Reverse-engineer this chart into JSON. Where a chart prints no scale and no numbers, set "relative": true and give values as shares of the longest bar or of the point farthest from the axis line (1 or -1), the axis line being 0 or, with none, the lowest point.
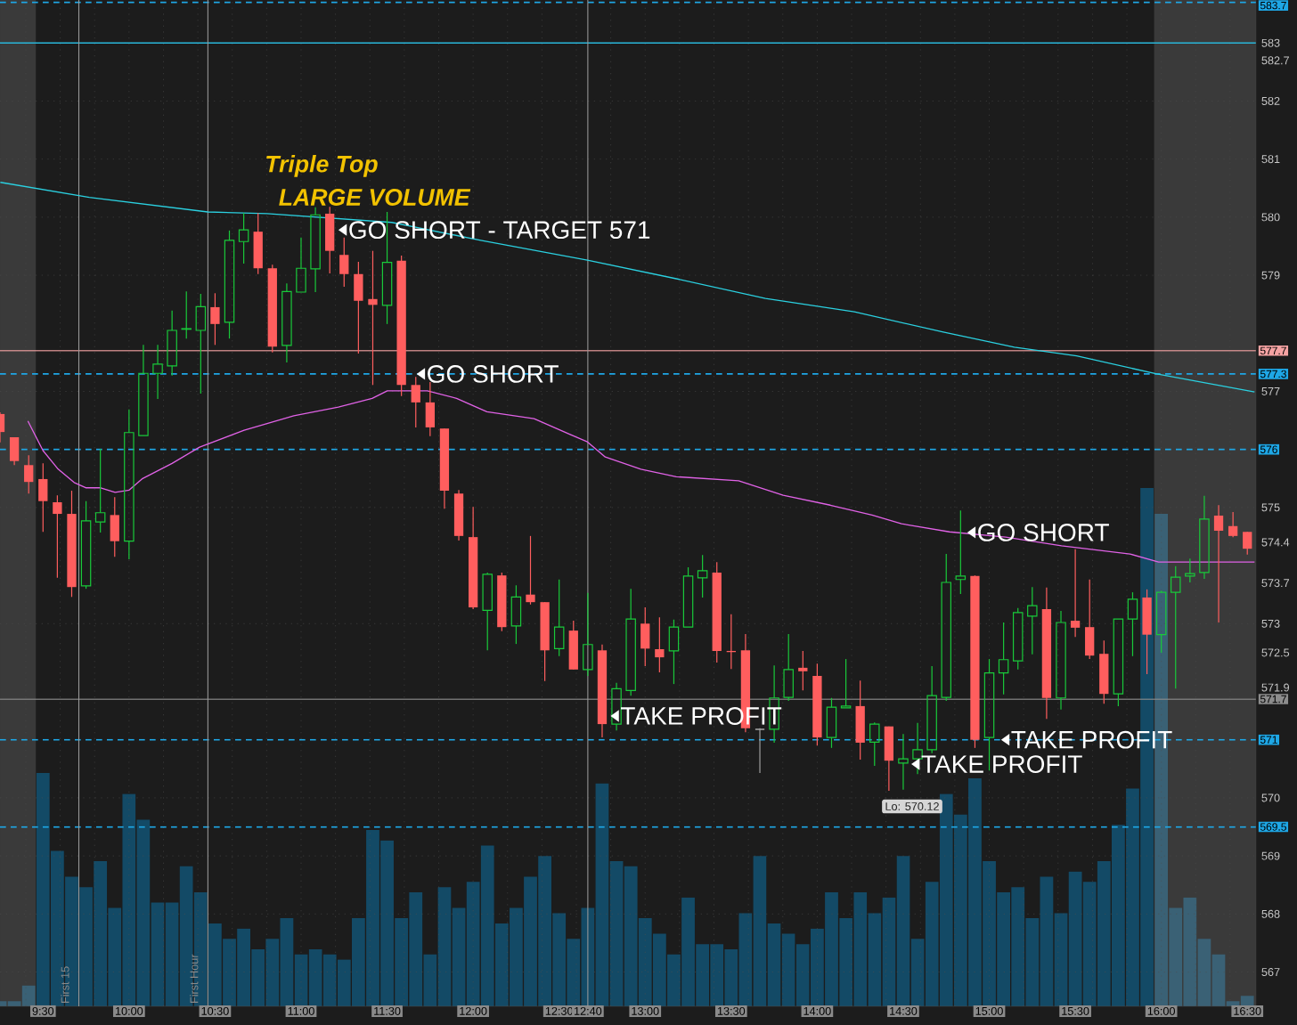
{
  "chart_data": [
    {
      "type": "candlestick",
      "x": [
        9.25,
        9.3333,
        9.4167,
        9.5,
        9.5833,
        9.6667,
        9.75,
        9.8333,
        9.9167,
        10,
        10.0833,
        10.1667,
        10.25,
        10.3333,
        10.4167,
        10.5,
        10.5833,
        10.6667,
        10.75,
        10.8333,
        10.9167,
        11,
        11.0833,
        11.1667,
        11.25,
        11.3333,
        11.4167,
        11.5,
        11.5833,
        11.6667,
        11.75,
        11.8333,
        11.9167,
        12,
        12.0833,
        12.1667,
        12.25,
        12.3333,
        12.4167,
        12.5,
        12.5833,
        12.6667,
        12.75,
        12.8333,
        12.9167,
        13,
        13.0833,
        13.1667,
        13.25,
        13.3333,
        13.4167,
        13.5,
        13.5833,
        13.6667,
        13.75,
        13.8333,
        13.9167,
        14,
        14.0833,
        14.1667,
        14.25,
        14.3333,
        14.4167,
        14.5,
        14.5833,
        14.6667,
        14.75,
        14.8333,
        14.9167,
        15,
        15.0833,
        15.1667,
        15.25,
        15.3333,
        15.4167,
        15.5,
        15.5833,
        15.6667,
        15.75,
        15.8333,
        15.9167,
        16,
        16.0833,
        16.1667,
        16.25,
        16.3333,
        16.4167,
        16.5
      ],
      "ohlc": [
        [
          576.61,
          576.64,
          576.12,
          576.3
        ],
        [
          576.21,
          576.21,
          575.73,
          575.8
        ],
        [
          575.73,
          575.9,
          575.24,
          575.44
        ],
        [
          575.49,
          575.76,
          574.58,
          575.11
        ],
        [
          575.09,
          575.21,
          573.79,
          574.89
        ],
        [
          574.89,
          575.29,
          573.46,
          573.63
        ],
        [
          573.65,
          575.11,
          573.6,
          574.77
        ],
        [
          574.75,
          576.01,
          574.57,
          574.91
        ],
        [
          574.87,
          575.18,
          574.15,
          574.42
        ],
        [
          574.42,
          576.69,
          574.11,
          576.29
        ],
        [
          576.24,
          577.8,
          576.21,
          577.31
        ],
        [
          577.31,
          577.8,
          576.87,
          577.47
        ],
        [
          577.44,
          578.39,
          577.27,
          578.05
        ],
        [
          578.07,
          578.72,
          577.91,
          578.08
        ],
        [
          578.05,
          578.68,
          576.96,
          578.46
        ],
        [
          578.45,
          578.69,
          577.8,
          578.16
        ],
        [
          578.19,
          579.77,
          577.91,
          579.6
        ],
        [
          579.58,
          580.07,
          579.2,
          579.78
        ],
        [
          579.75,
          580.07,
          579.02,
          579.12
        ],
        [
          579.12,
          579.18,
          577.67,
          577.77
        ],
        [
          577.79,
          578.86,
          577.5,
          578.72
        ],
        [
          578.71,
          579.65,
          578.71,
          579.12
        ],
        [
          579.11,
          580.17,
          578.71,
          580.04
        ],
        [
          580.06,
          580.18,
          579.03,
          579.42
        ],
        [
          579.35,
          579.65,
          578.8,
          579.02
        ],
        [
          579.02,
          579.23,
          577.65,
          578.56
        ],
        [
          578.59,
          579.42,
          577.11,
          578.49
        ],
        [
          578.48,
          580.09,
          578.16,
          579.22
        ],
        [
          579.25,
          579.34,
          576.92,
          577.11
        ],
        [
          577.11,
          577.25,
          576.38,
          576.81
        ],
        [
          576.81,
          577.16,
          576.23,
          576.38
        ],
        [
          576.36,
          576.36,
          574.98,
          575.29
        ],
        [
          575.24,
          575.3,
          574.43,
          574.51
        ],
        [
          574.49,
          575.01,
          573.25,
          573.28
        ],
        [
          573.23,
          573.88,
          572.54,
          573.85
        ],
        [
          573.83,
          573.88,
          572.87,
          572.94
        ],
        [
          572.96,
          573.66,
          572.65,
          573.46
        ],
        [
          573.5,
          574.51,
          573.33,
          573.37
        ],
        [
          573.37,
          573.37,
          572.01,
          572.54
        ],
        [
          572.57,
          573.76,
          572.44,
          572.94
        ],
        [
          572.88,
          573.05,
          572.21,
          572.21
        ],
        [
          572.21,
          573.53,
          572.1,
          572.64
        ],
        [
          572.54,
          572.64,
          571.04,
          571.27
        ],
        [
          571.27,
          571.98,
          571.16,
          571.88
        ],
        [
          571.85,
          573.6,
          571.76,
          573.08
        ],
        [
          573.0,
          573.28,
          572.27,
          572.57
        ],
        [
          572.56,
          573.11,
          572.16,
          572.42
        ],
        [
          572.53,
          573.07,
          571.96,
          572.94
        ],
        [
          572.94,
          573.97,
          572.94,
          573.82
        ],
        [
          573.79,
          574.18,
          573.45,
          573.91
        ],
        [
          573.88,
          574.06,
          572.33,
          572.53
        ],
        [
          572.53,
          573.16,
          572.22,
          572.51
        ],
        [
          572.54,
          572.82,
          571.13,
          571.2
        ],
        [
          571.18,
          571.2,
          570.43,
          571.18
        ],
        [
          571.18,
          572.28,
          570.95,
          571.72
        ],
        [
          571.73,
          572.82,
          571.67,
          572.21
        ],
        [
          572.24,
          572.53,
          571.85,
          572.18
        ],
        [
          572.1,
          572.31,
          570.9,
          571.04
        ],
        [
          571.04,
          571.72,
          570.86,
          571.56
        ],
        [
          571.55,
          572.39,
          571.52,
          571.58
        ],
        [
          571.58,
          572.02,
          570.66,
          570.95
        ],
        [
          570.96,
          571.3,
          570.55,
          571.27
        ],
        [
          571.23,
          571.23,
          570.12,
          570.64
        ],
        [
          570.6,
          571.1,
          570.14,
          570.67
        ],
        [
          570.67,
          571.29,
          570.41,
          570.83
        ],
        [
          570.83,
          572.27,
          570.77,
          571.76
        ],
        [
          571.73,
          574.2,
          571.67,
          573.71
        ],
        [
          573.76,
          574.95,
          573.51,
          573.82
        ],
        [
          573.82,
          573.83,
          570.86,
          571.0
        ],
        [
          571.04,
          572.39,
          570.47,
          572.15
        ],
        [
          572.15,
          573.02,
          571.78,
          572.38
        ],
        [
          572.36,
          573.27,
          572.21,
          573.19
        ],
        [
          573.13,
          573.63,
          572.47,
          573.31
        ],
        [
          573.25,
          573.62,
          571.36,
          571.72
        ],
        [
          571.72,
          573.22,
          571.52,
          573.02
        ],
        [
          573.05,
          574.28,
          572.77,
          572.93
        ],
        [
          572.94,
          573.76,
          572.39,
          572.45
        ],
        [
          572.48,
          572.71,
          571.62,
          571.79
        ],
        [
          571.79,
          573.08,
          571.58,
          573.08
        ],
        [
          573.08,
          573.54,
          572.44,
          573.42
        ],
        [
          573.45,
          573.59,
          572.13,
          572.81
        ],
        [
          572.81,
          573.57,
          572.5,
          573.54
        ],
        [
          573.54,
          573.99,
          571.88,
          573.8
        ],
        [
          573.82,
          574.12,
          573.71,
          573.86
        ],
        [
          573.88,
          575.2,
          573.77,
          574.8
        ],
        [
          574.86,
          575.04,
          573.02,
          574.6
        ],
        [
          574.68,
          574.92,
          574.49,
          574.51
        ],
        [
          574.58,
          574.58,
          574.19,
          574.29
        ]
      ],
      "series": [
        {
          "type": "line",
          "color": "#2bd0e0",
          "x": [
            9.252,
            9.769,
            10.457,
            10.803,
            11.527,
            12.044,
            12.664,
            13.181,
            13.699,
            14.216,
            14.733,
            15.146,
            15.508,
            15.974,
            16.542
          ],
          "values": [
            580.6,
            580.34,
            580.09,
            580.06,
            579.91,
            579.6,
            579.26,
            578.94,
            578.6,
            578.37,
            578.02,
            577.76,
            577.61,
            577.3,
            576.99
          ]
        },
        {
          "type": "line",
          "color": "#e062e6",
          "x": [
            9.412,
            9.5,
            9.588,
            9.681,
            9.748,
            9.831,
            9.919,
            10.001,
            10.079,
            10.25,
            10.41,
            10.669,
            10.958,
            11.217,
            11.413,
            11.501,
            11.734,
            11.904,
            12.08,
            12.354,
            12.561,
            12.664,
            12.768,
            12.975,
            13.181,
            13.543,
            13.802,
            14.076,
            14.319,
            14.49,
            14.769,
            15.095,
            15.42,
            15.818,
            15.984,
            16.542
          ],
          "values": [
            576.49,
            575.98,
            575.66,
            575.43,
            575.34,
            575.34,
            575.26,
            575.3,
            575.5,
            575.76,
            576.04,
            576.33,
            576.58,
            576.73,
            576.88,
            577.01,
            577.01,
            576.88,
            576.65,
            576.53,
            576.26,
            576.13,
            575.87,
            575.66,
            575.53,
            575.46,
            575.21,
            575.04,
            574.87,
            574.72,
            574.58,
            574.49,
            574.34,
            574.2,
            574.06,
            574.06
          ]
        }
      ],
      "xlim": [
        9.25,
        16.55
      ],
      "ylim": [
        566.41,
        583.74
      ],
      "xticks": [
        {
          "value": 9.5,
          "label": "9:30"
        },
        {
          "value": 10,
          "label": "10:00"
        },
        {
          "value": 10.5,
          "label": "10:30"
        },
        {
          "value": 11,
          "label": "11:00"
        },
        {
          "value": 11.5,
          "label": "11:30"
        },
        {
          "value": 12,
          "label": "12:00"
        },
        {
          "value": 12.5,
          "label": "12:30"
        },
        {
          "value": 13,
          "label": "13:00"
        },
        {
          "value": 13.5,
          "label": "13:30"
        },
        {
          "value": 14,
          "label": "14:00"
        },
        {
          "value": 14.5,
          "label": "14:30"
        },
        {
          "value": 15,
          "label": "15:00"
        },
        {
          "value": 15.5,
          "label": "15:30"
        },
        {
          "value": 16,
          "label": "16:00"
        },
        {
          "value": 16.5,
          "label": "16:30"
        },
        {
          "value": 12.6667,
          "label": "12:40"
        }
      ],
      "yticks": [
        567,
        568,
        569,
        570,
        573,
        575,
        577,
        579,
        580,
        581,
        582,
        583,
        {
          "value": 582.7,
          "label": "582.7"
        },
        {
          "value": 574.4,
          "label": "574.4"
        },
        {
          "value": 573.7,
          "label": "573.7"
        },
        {
          "value": 572.5,
          "label": "572.5"
        },
        {
          "value": 571.9,
          "label": "571.9"
        }
      ],
      "grid": true,
      "ref_lines": [
        {
          "axis": "y",
          "value": 583.7,
          "label": "583.7",
          "color": "#1ea7e6",
          "line_style": "dashed"
        },
        {
          "axis": "y",
          "value": 583,
          "color": "#29b6d9"
        },
        {
          "axis": "y",
          "value": 577.7,
          "label": "577.7",
          "color": "#f4a3a3"
        },
        {
          "axis": "y",
          "value": 577.3,
          "label": "577.3",
          "color": "#1ea7e6",
          "line_style": "dashed"
        },
        {
          "axis": "y",
          "value": 576,
          "label": "576",
          "color": "#1ea7e6",
          "line_style": "dashed"
        },
        {
          "axis": "y",
          "value": 571.7,
          "label": "571.7",
          "color": "#8c8c8c"
        },
        {
          "axis": "y",
          "value": 571,
          "label": "571",
          "color": "#1ea7e6",
          "line_style": "dashed"
        },
        {
          "axis": "y",
          "value": 569.5,
          "label": "569.5",
          "color": "#1ea7e6",
          "line_style": "dashed"
        },
        {
          "axis": "x",
          "value": 9.7083,
          "label": "First 15",
          "color": "#9a9a9a"
        },
        {
          "axis": "x",
          "value": 10.4583,
          "label": "First Hour",
          "color": "#9a9a9a"
        },
        {
          "axis": "x",
          "value": 12.6667,
          "color": "#9a9a9a"
        }
      ],
      "annotations": [
        "Triple Top",
        "LARGE VOLUME",
        {
          "text": "GO SHORT - TARGET 571",
          "x": 11.217,
          "y": 579.78
        },
        {
          "text": "GO SHORT",
          "x": 11.672,
          "y": 577.3
        },
        {
          "text": "GO SHORT",
          "x": 14.872,
          "y": 574.57
        },
        {
          "text": "TAKE PROFIT",
          "x": 12.799,
          "y": 571.41
        },
        {
          "text": "TAKE PROFIT",
          "x": 15.069,
          "y": 571.0
        },
        {
          "text": "TAKE PROFIT",
          "x": 14.547,
          "y": 570.58
        },
        {
          "text": "Lo: 570.12",
          "x": 14.4167,
          "y": 570.12
        }
      ]
    },
    {
      "type": "bar",
      "relative": true,
      "tick_labels": false,
      "x": [
        9.25,
        9.3333,
        9.4167,
        9.5,
        9.5833,
        9.6667,
        9.75,
        9.8333,
        9.9167,
        10,
        10.0833,
        10.1667,
        10.25,
        10.3333,
        10.4167,
        10.5,
        10.5833,
        10.6667,
        10.75,
        10.8333,
        10.9167,
        11,
        11.0833,
        11.1667,
        11.25,
        11.3333,
        11.4167,
        11.5,
        11.5833,
        11.6667,
        11.75,
        11.8333,
        11.9167,
        12,
        12.0833,
        12.1667,
        12.25,
        12.3333,
        12.4167,
        12.5,
        12.5833,
        12.6667,
        12.75,
        12.8333,
        12.9167,
        13,
        13.0833,
        13.1667,
        13.25,
        13.3333,
        13.4167,
        13.5,
        13.5833,
        13.6667,
        13.75,
        13.8333,
        13.9167,
        14,
        14.0833,
        14.1667,
        14.25,
        14.3333,
        14.4167,
        14.5,
        14.5833,
        14.6667,
        14.75,
        14.8333,
        14.9167,
        15,
        15.0833,
        15.1667,
        15.25,
        15.3333,
        15.4167,
        15.5,
        15.5833,
        15.6667,
        15.75,
        15.8333,
        15.9167,
        16,
        16.0833,
        16.1667,
        16.25,
        16.3333,
        16.4167,
        16.5
      ],
      "values": [
        0.01,
        0.01,
        0.04,
        0.45,
        0.3,
        0.25,
        0.23,
        0.28,
        0.19,
        0.41,
        0.36,
        0.2,
        0.2,
        0.27,
        0.22,
        0.16,
        0.13,
        0.15,
        0.11,
        0.13,
        0.17,
        0.1,
        0.11,
        0.1,
        0.09,
        0.17,
        0.34,
        0.32,
        0.17,
        0.22,
        0.1,
        0.23,
        0.19,
        0.24,
        0.31,
        0.16,
        0.19,
        0.25,
        0.29,
        0.18,
        0.13,
        0.19,
        0.43,
        0.28,
        0.27,
        0.17,
        0.14,
        0.1,
        0.21,
        0.12,
        0.12,
        0.11,
        0.18,
        0.29,
        0.16,
        0.14,
        0.12,
        0.15,
        0.22,
        0.17,
        0.22,
        0.18,
        0.21,
        0.29,
        0.13,
        0.24,
        0.41,
        0.37,
        0.44,
        0.28,
        0.22,
        0.23,
        0.17,
        0.25,
        0.18,
        0.26,
        0.24,
        0.28,
        0.35,
        0.42,
        1.0,
        0.95,
        0.19,
        0.21,
        0.13,
        0.1,
        0.01,
        0.02
      ],
      "colors": [
        "#3a6175",
        "#3a6175",
        "#3a6175",
        "#134a66",
        "#134a66",
        "#134a66",
        "#134a66",
        "#134a66",
        "#134a66",
        "#134a66",
        "#134a66",
        "#134a66",
        "#134a66",
        "#134a66",
        "#134a66",
        "#134a66",
        "#134a66",
        "#134a66",
        "#134a66",
        "#134a66",
        "#134a66",
        "#134a66",
        "#134a66",
        "#134a66",
        "#134a66",
        "#134a66",
        "#134a66",
        "#134a66",
        "#134a66",
        "#134a66",
        "#134a66",
        "#134a66",
        "#134a66",
        "#134a66",
        "#134a66",
        "#134a66",
        "#134a66",
        "#134a66",
        "#134a66",
        "#134a66",
        "#134a66",
        "#134a66",
        "#134a66",
        "#134a66",
        "#134a66",
        "#134a66",
        "#134a66",
        "#134a66",
        "#134a66",
        "#134a66",
        "#134a66",
        "#134a66",
        "#134a66",
        "#134a66",
        "#134a66",
        "#134a66",
        "#134a66",
        "#134a66",
        "#134a66",
        "#134a66",
        "#134a66",
        "#134a66",
        "#134a66",
        "#134a66",
        "#134a66",
        "#134a66",
        "#134a66",
        "#134a66",
        "#134a66",
        "#134a66",
        "#134a66",
        "#134a66",
        "#134a66",
        "#134a66",
        "#134a66",
        "#134a66",
        "#134a66",
        "#134a66",
        "#134a66",
        "#134a66",
        "#134a66",
        "#3a6175",
        "#3a6175",
        "#3a6175",
        "#3a6175",
        "#3a6175",
        "#3a6175",
        "#3a6175"
      ],
      "xlim": [
        9.25,
        16.55
      ],
      "bands": [
        {
          "axis": "x",
          "from": 9.25,
          "to": 9.4583,
          "color": "#3a3a3a"
        },
        {
          "axis": "x",
          "from": 15.9583,
          "to": 16.55,
          "color": "#3a3a3a"
        }
      ]
    }
  ]
}
